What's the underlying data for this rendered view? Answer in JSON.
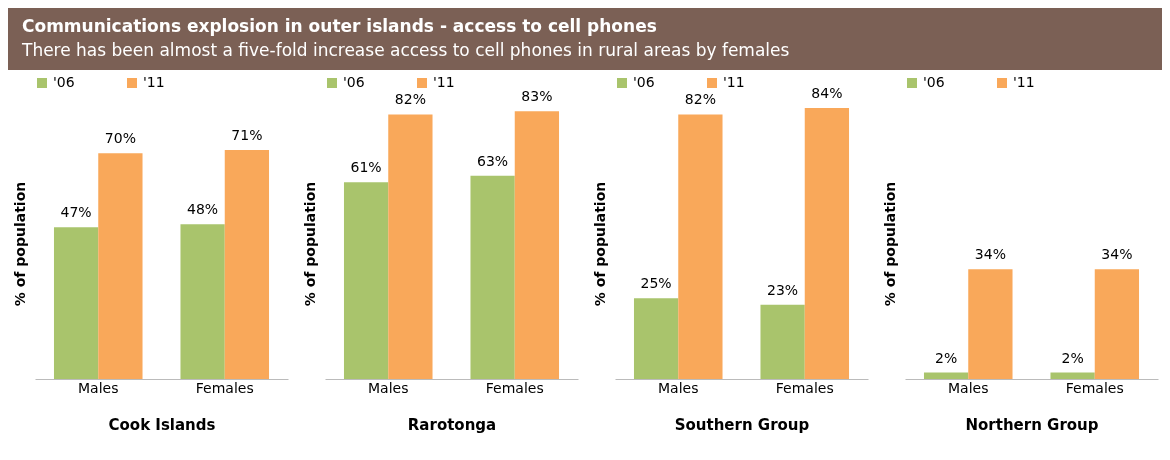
{
  "chart_data": [
    {
      "type": "bar",
      "title": "Communications explosion in outer islands - access to cell phones",
      "subtitle": "There has been almost a five-fold increase access to cell phones in rural areas by females",
      "xlabel": "Cook Islands",
      "ylabel": "% of population",
      "categories": [
        "Males",
        "Females"
      ],
      "series": [
        {
          "name": "'06",
          "color": "#a9c46c",
          "values": [
            47,
            48
          ],
          "value_labels": [
            "47%",
            "48%"
          ]
        },
        {
          "name": "'11",
          "color": "#f9a85a",
          "values": [
            70,
            71
          ],
          "value_labels": [
            "70%",
            "71%"
          ]
        }
      ],
      "legend": "top",
      "grid": false,
      "tick_labels": "x"
    },
    {
      "type": "bar",
      "xlabel": "Rarotonga",
      "ylabel": "% of population",
      "categories": [
        "Males",
        "Females"
      ],
      "series": [
        {
          "name": "'06",
          "color": "#a9c46c",
          "values": [
            61,
            63
          ],
          "value_labels": [
            "61%",
            "63%"
          ]
        },
        {
          "name": "'11",
          "color": "#f9a85a",
          "values": [
            82,
            83
          ],
          "value_labels": [
            "82%",
            "83%"
          ]
        }
      ],
      "legend": "top",
      "grid": false,
      "tick_labels": "x"
    },
    {
      "type": "bar",
      "xlabel": "Southern Group",
      "ylabel": "% of population",
      "categories": [
        "Males",
        "Females"
      ],
      "series": [
        {
          "name": "'06",
          "color": "#a9c46c",
          "values": [
            25,
            23
          ],
          "value_labels": [
            "25%",
            "23%"
          ]
        },
        {
          "name": "'11",
          "color": "#f9a85a",
          "values": [
            82,
            84
          ],
          "value_labels": [
            "82%",
            "84%"
          ]
        }
      ],
      "legend": "top",
      "grid": false,
      "tick_labels": "x"
    },
    {
      "type": "bar",
      "xlabel": "Northern Group",
      "ylabel": "% of population",
      "categories": [
        "Males",
        "Females"
      ],
      "series": [
        {
          "name": "'06",
          "color": "#a9c46c",
          "values": [
            2,
            2
          ],
          "value_labels": [
            "2%",
            "2%"
          ]
        },
        {
          "name": "'11",
          "color": "#f9a85a",
          "values": [
            34,
            34
          ],
          "value_labels": [
            "34%",
            "34%"
          ]
        }
      ],
      "legend": "top",
      "grid": false,
      "tick_labels": "x"
    }
  ]
}
